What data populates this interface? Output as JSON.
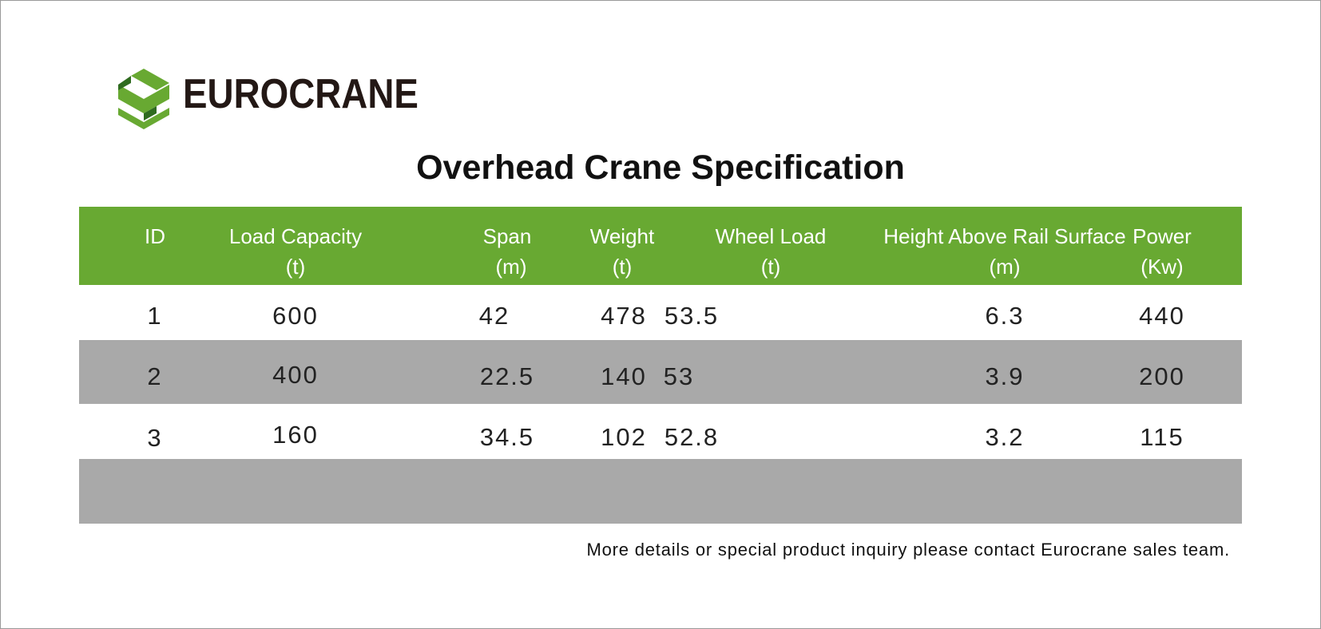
{
  "brand": {
    "name": "EUROCRANE",
    "logo_icon": "eurocrane-logo-icon",
    "logo_color": "#68a932"
  },
  "title": "Overhead Crane Specification",
  "table": {
    "header_color": "#68a932",
    "shade_color": "#a9a9a9",
    "columns": [
      {
        "label": "ID",
        "unit": ""
      },
      {
        "label": "Load Capacity",
        "unit": "(t)"
      },
      {
        "label": "Span",
        "unit": "(m)"
      },
      {
        "label": "Weight",
        "unit": "(t)"
      },
      {
        "label": "Wheel Load",
        "unit": "(t)"
      },
      {
        "label": "Height Above Rail Surface",
        "unit": "(m)"
      },
      {
        "label": "Power",
        "unit": "(Kw)"
      }
    ],
    "rows": [
      [
        "1",
        "600",
        "42",
        "478",
        "53.5",
        "6.3",
        "440"
      ],
      [
        "2",
        "400",
        "22.5",
        "140",
        "53",
        "3.9",
        "200"
      ],
      [
        "3",
        "160",
        "34.5",
        "102",
        "52.8",
        "3.2",
        "115"
      ],
      [
        "",
        "",
        "",
        "",
        "",
        "",
        ""
      ]
    ]
  },
  "footer_note": "More details or special product inquiry please contact Eurocrane sales team."
}
